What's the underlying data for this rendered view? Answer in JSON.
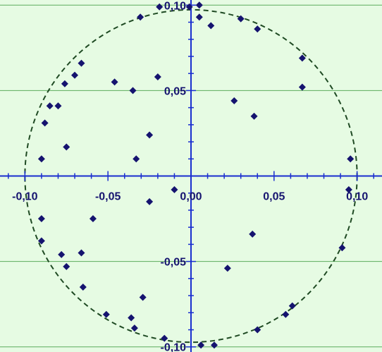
{
  "chart_data": {
    "type": "scatter",
    "xlim": [
      -0.115,
      0.115
    ],
    "ylim": [
      -0.103,
      0.103
    ],
    "grid": true,
    "grid_axis": "y",
    "x_ticks": [
      -0.1,
      -0.05,
      0.0,
      0.05,
      0.1
    ],
    "x_tick_labels": [
      "-0,10",
      "-0,05",
      "0,00",
      "0,05",
      "0,10"
    ],
    "y_ticks": [
      -0.1,
      -0.05,
      0.0,
      0.05,
      0.1
    ],
    "y_tick_labels": [
      "-0,10",
      "-0,05",
      "0,00",
      "0,05",
      "0,10"
    ],
    "reference_circle": {
      "center": [
        0,
        0
      ],
      "radius": 0.1,
      "style": "dashed"
    },
    "colors": {
      "background": "#e6fbe3",
      "gridline": "#5cab5c",
      "axis": "#1a2ecf",
      "marker": "#15136f",
      "circle": "#1f4a23",
      "tick_label": "#15136f"
    },
    "marker_shape": "diamond",
    "points": [
      {
        "x": -0.0305,
        "y": 0.093
      },
      {
        "x": -0.019,
        "y": 0.099
      },
      {
        "x": -0.001,
        "y": 0.099
      },
      {
        "x": 0.005,
        "y": 0.1
      },
      {
        "x": 0.005,
        "y": 0.093
      },
      {
        "x": 0.012,
        "y": 0.088
      },
      {
        "x": 0.03,
        "y": 0.092
      },
      {
        "x": 0.04,
        "y": 0.086
      },
      {
        "x": -0.066,
        "y": 0.066
      },
      {
        "x": -0.07,
        "y": 0.059
      },
      {
        "x": -0.076,
        "y": 0.054
      },
      {
        "x": 0.067,
        "y": 0.069
      },
      {
        "x": -0.046,
        "y": 0.055
      },
      {
        "x": -0.02,
        "y": 0.058
      },
      {
        "x": -0.035,
        "y": 0.05
      },
      {
        "x": 0.067,
        "y": 0.052
      },
      {
        "x": -0.085,
        "y": 0.041
      },
      {
        "x": -0.08,
        "y": 0.041
      },
      {
        "x": 0.026,
        "y": 0.044
      },
      {
        "x": -0.088,
        "y": 0.031
      },
      {
        "x": 0.038,
        "y": 0.035
      },
      {
        "x": -0.025,
        "y": 0.024
      },
      {
        "x": -0.075,
        "y": 0.017
      },
      {
        "x": -0.09,
        "y": 0.01
      },
      {
        "x": -0.033,
        "y": 0.01
      },
      {
        "x": 0.096,
        "y": 0.01
      },
      {
        "x": 0.095,
        "y": -0.008
      },
      {
        "x": -0.01,
        "y": -0.008
      },
      {
        "x": -0.025,
        "y": -0.015
      },
      {
        "x": -0.09,
        "y": -0.025
      },
      {
        "x": -0.059,
        "y": -0.025
      },
      {
        "x": -0.09,
        "y": -0.038
      },
      {
        "x": 0.037,
        "y": -0.034
      },
      {
        "x": -0.078,
        "y": -0.046
      },
      {
        "x": -0.066,
        "y": -0.045
      },
      {
        "x": -0.075,
        "y": -0.053
      },
      {
        "x": 0.022,
        "y": -0.054
      },
      {
        "x": 0.091,
        "y": -0.042
      },
      {
        "x": -0.065,
        "y": -0.065
      },
      {
        "x": -0.029,
        "y": -0.071
      },
      {
        "x": -0.051,
        "y": -0.081
      },
      {
        "x": -0.036,
        "y": -0.083
      },
      {
        "x": 0.061,
        "y": -0.076
      },
      {
        "x": 0.057,
        "y": -0.081
      },
      {
        "x": -0.034,
        "y": -0.089
      },
      {
        "x": 0.04,
        "y": -0.09
      },
      {
        "x": -0.016,
        "y": -0.095
      },
      {
        "x": 0.006,
        "y": -0.099
      },
      {
        "x": 0.014,
        "y": -0.099
      }
    ]
  }
}
